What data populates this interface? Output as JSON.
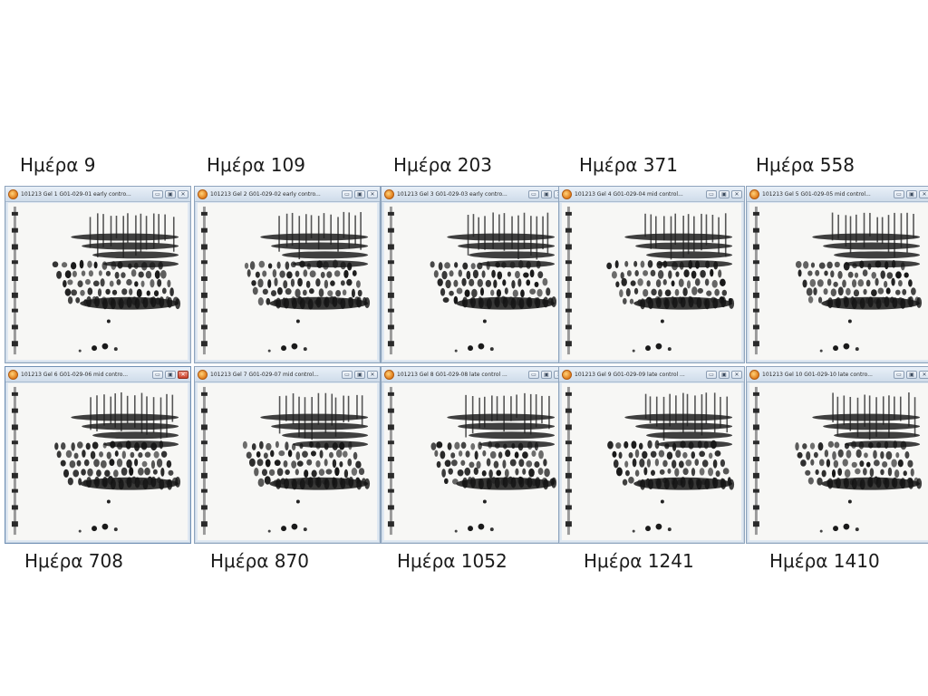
{
  "top_labels": [
    "Ημέρα 9",
    "Ημέρα 109",
    "Ημέρα 203",
    "Ημέρα 371",
    "Ημέρα 558"
  ],
  "bottom_labels": [
    "Ημέρα 708",
    "Ημέρα 870",
    "Ημέρα 1052",
    "Ημέρα 1241",
    "Ημέρα 1410"
  ],
  "windows": [
    {
      "title": "101213 Gel 1 G01-029-01 early contro..."
    },
    {
      "title": "101213 Gel 2 G01-029-02 early contro..."
    },
    {
      "title": "101213 Gel 3 G01-029-03 early contro..."
    },
    {
      "title": "101213 Gel 4 G01-029-04 mid control..."
    },
    {
      "title": "101213 Gel 5 G01-029-05 mid control..."
    },
    {
      "title": "101213 Gel 6 G01-029-06 mid contro..."
    },
    {
      "title": "101213 Gel 7 G01-029-07 mid control..."
    },
    {
      "title": "101213 Gel 8 G01-029-08 late control ..."
    },
    {
      "title": "101213 Gel 9 G01-029-09 late control ..."
    },
    {
      "title": "101213 Gel 10 G01-029-10 late contro..."
    }
  ],
  "controls": {
    "minimize": "▭",
    "maximize": "▣",
    "close": "✕"
  },
  "colors": {
    "titlebar": "#dfe8f2",
    "gel_background": "#f7f7f5",
    "spots": "#1a1a1a",
    "close_active": "#c9402a"
  }
}
